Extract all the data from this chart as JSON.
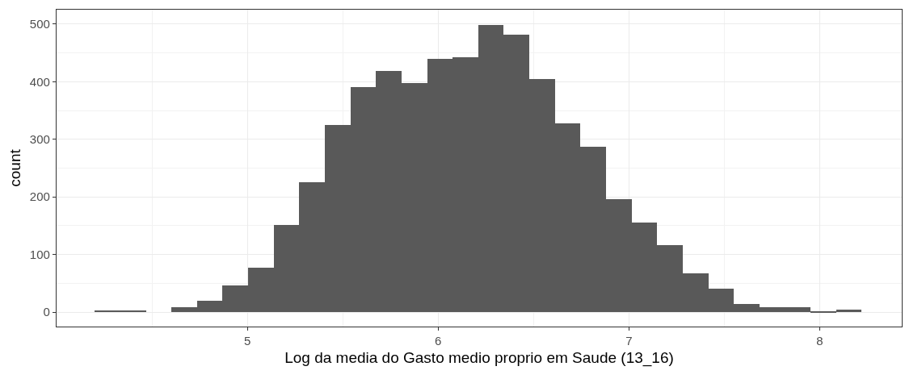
{
  "chart_data": {
    "type": "histogram",
    "xlabel": "Log da media do Gasto medio proprio em Saude (13_16)",
    "ylabel": "count",
    "bins": [
      4.2,
      4.334,
      4.468,
      4.602,
      4.736,
      4.87,
      5.004,
      5.138,
      5.272,
      5.406,
      5.54,
      5.674,
      5.808,
      5.942,
      6.076,
      6.21,
      6.344,
      6.478,
      6.612,
      6.746,
      6.88,
      7.014,
      7.148,
      7.282,
      7.416,
      7.55,
      7.684,
      7.818,
      7.952,
      8.086,
      8.22
    ],
    "values": [
      3,
      3,
      0,
      9,
      20,
      46,
      77,
      151,
      226,
      325,
      390,
      419,
      397,
      440,
      443,
      499,
      481,
      405,
      327,
      287,
      196,
      156,
      116,
      68,
      41,
      14,
      8,
      8,
      2,
      5
    ],
    "color": "#595959",
    "xlim": [
      4.0,
      8.43
    ],
    "xticks": [
      5,
      6,
      7,
      8
    ],
    "ylim": [
      -25,
      525
    ],
    "yticks": [
      0,
      100,
      200,
      300,
      400,
      500
    ],
    "grid": true
  }
}
